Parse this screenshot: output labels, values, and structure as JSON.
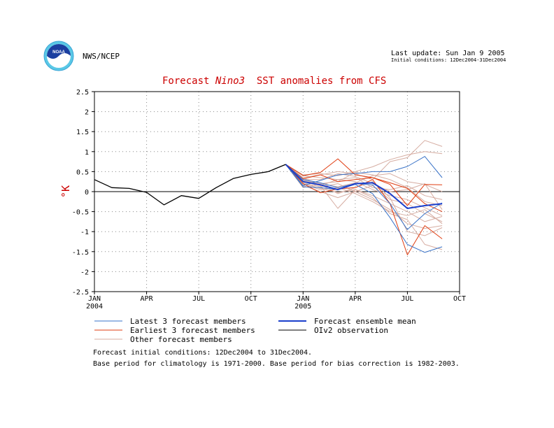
{
  "header": {
    "org": "NWS/NCEP",
    "last_update": "Last update: Sun Jan  9 2005",
    "initial_conditions": "Initial conditions: 12Dec2004-31Dec2004",
    "logo_text": "NOAA"
  },
  "title": {
    "prefix": "Forecast ",
    "region": "Nino3",
    "suffix": "  SST anomalies from CFS"
  },
  "notes": {
    "line1": "Forecast initial conditions: 12Dec2004 to 31Dec2004.",
    "line2": "Base period for climatology is 1971-2000. Base period for bias correction is 1982-2003."
  },
  "colors": {
    "observation": "#000000",
    "ensemble_mean": "#1a3fcc",
    "latest": "#3a73c8",
    "earliest": "#e03c10",
    "other": "#d6ada2",
    "title": "#cc0000",
    "grid": "#888888"
  },
  "chart_data": {
    "type": "line",
    "title": "Forecast Nino3  SST anomalies from CFS",
    "ylabel": "°K",
    "xlabel": "",
    "ylim": [
      -2.5,
      2.5
    ],
    "yticks": [
      "2.5",
      "2",
      "1.5",
      "1",
      "0.5",
      "0",
      "-0.5",
      "-1",
      "-1.5",
      "-2",
      "-2.5"
    ],
    "xticks": [
      {
        "month": 0,
        "label": "JAN",
        "sub": "2004"
      },
      {
        "month": 3,
        "label": "APR",
        "sub": ""
      },
      {
        "month": 6,
        "label": "JUL",
        "sub": ""
      },
      {
        "month": 9,
        "label": "OCT",
        "sub": ""
      },
      {
        "month": 12,
        "label": "JAN",
        "sub": "2005"
      },
      {
        "month": 15,
        "label": "APR",
        "sub": ""
      },
      {
        "month": 18,
        "label": "JUL",
        "sub": ""
      },
      {
        "month": 21,
        "label": "OCT",
        "sub": ""
      }
    ],
    "xlim": [
      0,
      21
    ],
    "grid": true,
    "x_axis_units": "months since Jan 2004",
    "legend": [
      {
        "label": "Latest 3 forecast members",
        "kind": "latest"
      },
      {
        "label": "Forecast ensemble mean",
        "kind": "mean"
      },
      {
        "label": "Earliest 3 forecast members",
        "kind": "earliest"
      },
      {
        "label": "OIv2 observation",
        "kind": "observation"
      },
      {
        "label": "Other forecast members",
        "kind": "other"
      }
    ],
    "observation": {
      "x": [
        0,
        1,
        2,
        3,
        4,
        5,
        6,
        7,
        8,
        9,
        10,
        11
      ],
      "y": [
        0.3,
        0.1,
        0.08,
        -0.02,
        -0.33,
        -0.1,
        -0.17,
        0.1,
        0.33,
        0.43,
        0.5,
        0.68
      ]
    },
    "forecast_x": [
      11,
      12,
      13,
      14,
      15,
      16,
      17,
      18,
      19,
      20
    ],
    "ensemble_mean": [
      0.68,
      0.25,
      0.17,
      0.05,
      0.2,
      0.22,
      -0.05,
      -0.42,
      -0.35,
      -0.3
    ],
    "latest": [
      [
        0.68,
        0.15,
        0.28,
        0.42,
        0.45,
        0.5,
        0.5,
        0.63,
        0.88,
        0.35
      ],
      [
        0.68,
        0.3,
        0.22,
        0.1,
        0.2,
        0.17,
        -0.3,
        -0.95,
        -0.55,
        -0.28
      ],
      [
        0.68,
        0.12,
        0.1,
        0.05,
        0.18,
        -0.05,
        -0.65,
        -1.32,
        -1.52,
        -1.38
      ]
    ],
    "earliest": [
      [
        0.68,
        0.4,
        0.48,
        0.82,
        0.42,
        0.35,
        0.22,
        0.08,
        -0.3,
        -0.5
      ],
      [
        0.68,
        0.2,
        -0.03,
        0.07,
        0.1,
        0.3,
        -0.3,
        -1.58,
        -0.85,
        -1.18
      ],
      [
        0.68,
        0.32,
        0.42,
        0.25,
        0.3,
        0.35,
        0.18,
        -0.35,
        0.18,
        0.17
      ]
    ],
    "other": [
      [
        0.68,
        0.35,
        0.42,
        0.5,
        0.45,
        0.3,
        0.75,
        0.85,
        1.28,
        1.13
      ],
      [
        0.68,
        0.42,
        0.45,
        0.4,
        0.5,
        0.62,
        0.8,
        0.92,
        1.0,
        0.95
      ],
      [
        0.68,
        0.3,
        0.2,
        0.12,
        0.22,
        0.4,
        0.45,
        0.25,
        0.18,
        0.0
      ],
      [
        0.68,
        0.25,
        0.15,
        0.3,
        0.35,
        0.1,
        0.05,
        0.15,
        -0.1,
        -0.2
      ],
      [
        0.68,
        0.2,
        0.08,
        -0.02,
        0.05,
        -0.1,
        -0.3,
        -0.5,
        -0.75,
        -0.62
      ],
      [
        0.68,
        0.15,
        0.0,
        -0.15,
        0.0,
        -0.2,
        -0.45,
        -0.8,
        -0.92,
        -0.85
      ],
      [
        0.68,
        0.28,
        0.18,
        -0.05,
        0.1,
        0.25,
        -0.15,
        -1.0,
        -1.1,
        -0.9
      ],
      [
        0.68,
        0.35,
        0.15,
        -0.42,
        0.05,
        -0.15,
        -0.55,
        -0.7,
        -1.32,
        -1.45
      ],
      [
        0.68,
        0.22,
        0.12,
        0.2,
        0.0,
        0.15,
        -0.2,
        -0.3,
        -0.55,
        -0.75
      ],
      [
        0.68,
        0.3,
        0.3,
        0.45,
        0.38,
        0.2,
        0.0,
        0.05,
        0.2,
        -0.45
      ],
      [
        0.68,
        0.1,
        0.2,
        0.25,
        0.48,
        0.42,
        0.3,
        0.1,
        -0.25,
        -0.35
      ],
      [
        0.68,
        0.4,
        0.35,
        0.3,
        0.25,
        0.05,
        -0.1,
        -0.2,
        -0.4,
        -0.6
      ],
      [
        0.68,
        0.18,
        0.05,
        0.1,
        -0.05,
        -0.25,
        -0.5,
        -0.6,
        -0.45,
        -0.8
      ]
    ]
  }
}
